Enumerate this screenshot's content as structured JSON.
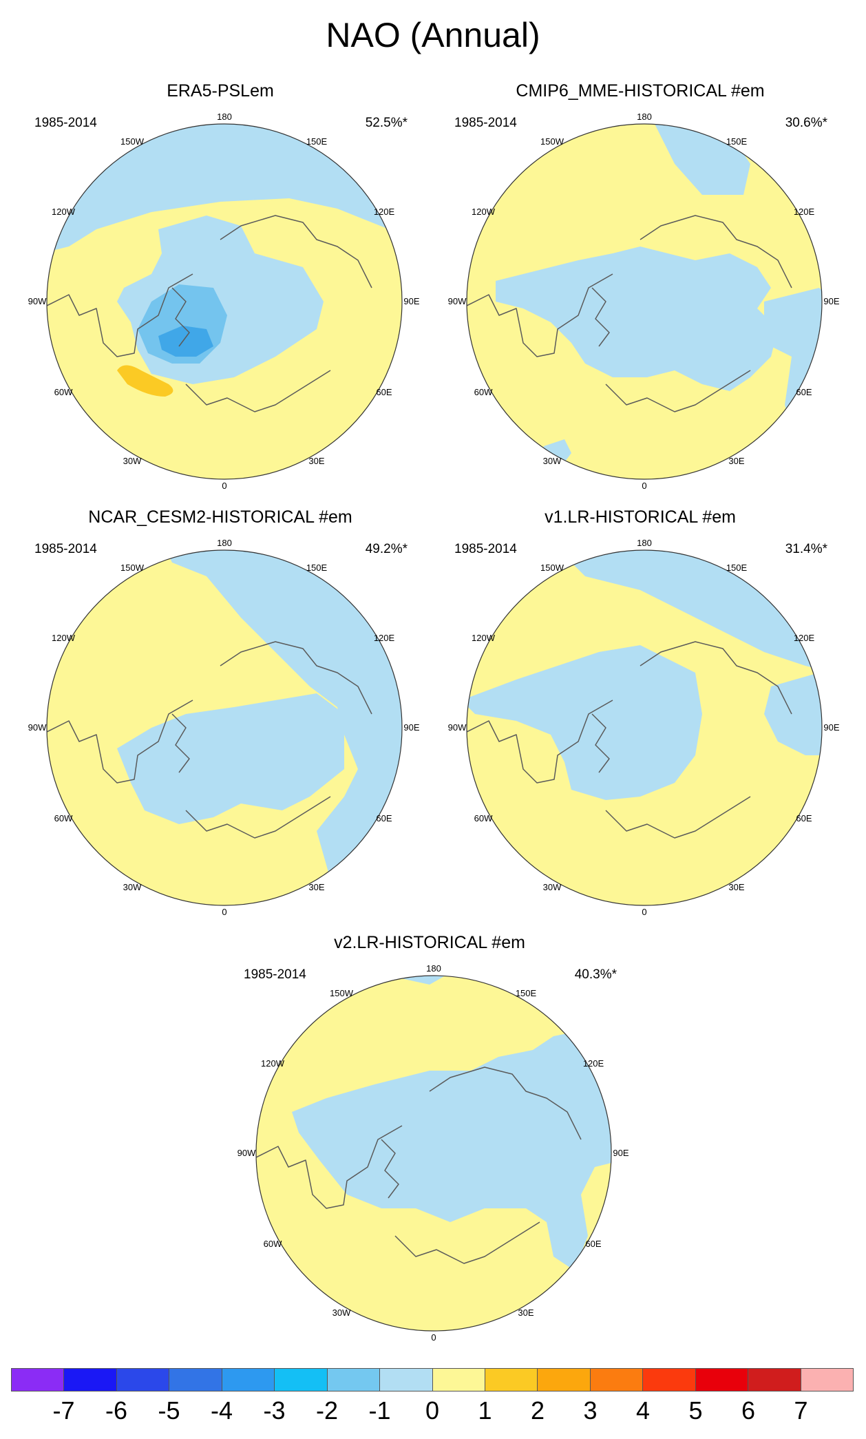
{
  "title": "NAO (Annual)",
  "colors": {
    "yellow": "#fdf796",
    "lightblue": "#b2def3",
    "midblue": "#74c4ee",
    "blue": "#40a7e8",
    "darkyellow": "#fbca24"
  },
  "panels": [
    {
      "title": "ERA5-PSLem",
      "period": "1985-2014",
      "percent": "52.5%*",
      "lon_labels": [
        "180",
        "150E",
        "120E",
        "90E",
        "60E",
        "30E",
        "0",
        "30W",
        "60W",
        "90W",
        "120W",
        "150W"
      ]
    },
    {
      "title": "CMIP6_MME-HISTORICAL  #em",
      "period": "1985-2014",
      "percent": "30.6%*",
      "lon_labels": [
        "180",
        "150E",
        "120E",
        "90E",
        "60E",
        "30E",
        "0",
        "30W",
        "60W",
        "90W",
        "120W",
        "150W"
      ]
    },
    {
      "title": "NCAR_CESM2-HISTORICAL  #em",
      "period": "1985-2014",
      "percent": "49.2%*",
      "lon_labels": [
        "180",
        "150E",
        "120E",
        "90E",
        "60E",
        "30E",
        "0",
        "30W",
        "60W",
        "90W",
        "120W",
        "150W"
      ]
    },
    {
      "title": "v1.LR-HISTORICAL  #em",
      "period": "1985-2014",
      "percent": "31.4%*",
      "lon_labels": [
        "180",
        "150E",
        "120E",
        "90E",
        "60E",
        "30E",
        "0",
        "30W",
        "60W",
        "90W",
        "120W",
        "150W"
      ]
    },
    {
      "title": "v2.LR-HISTORICAL  #em",
      "period": "1985-2014",
      "percent": "40.3%*",
      "lon_labels": [
        "180",
        "150E",
        "120E",
        "90E",
        "60E",
        "30E",
        "0",
        "30W",
        "60W",
        "90W",
        "120W",
        "150W"
      ]
    }
  ],
  "colorbar": {
    "colors": [
      "#8b2cf5",
      "#1a18f5",
      "#2b48ea",
      "#3274e6",
      "#2d99f0",
      "#14bff5",
      "#74c8f0",
      "#b2def3",
      "#fdf796",
      "#fbca24",
      "#fca70d",
      "#fb7c10",
      "#fb3a0d",
      "#e8000b",
      "#d01d1d",
      "#fbb1b1"
    ],
    "labels": [
      "-7",
      "-6",
      "-5",
      "-4",
      "-3",
      "-2",
      "-1",
      "0",
      "1",
      "2",
      "3",
      "4",
      "5",
      "6",
      "7"
    ]
  }
}
